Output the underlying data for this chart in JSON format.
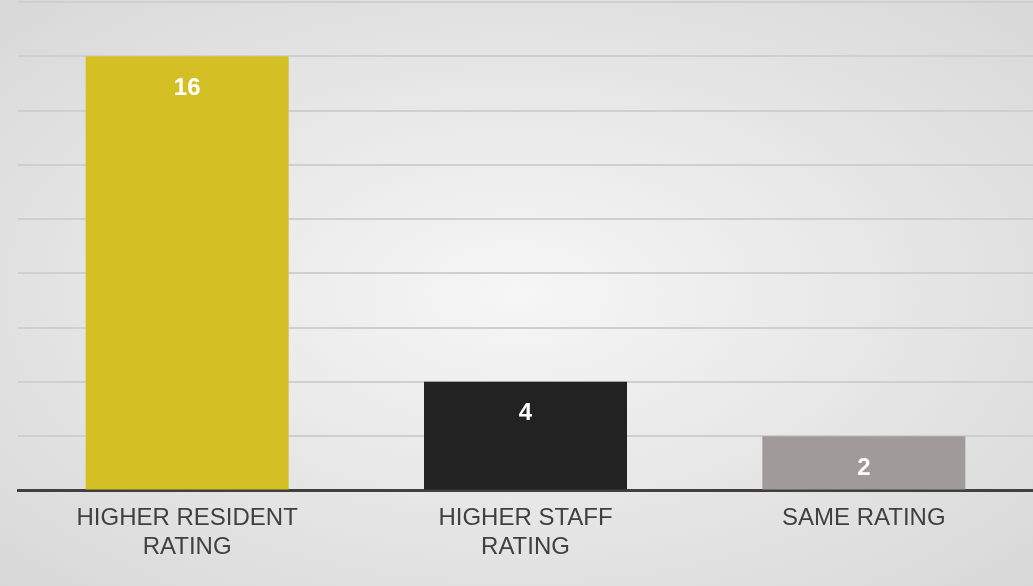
{
  "chart_data": {
    "type": "bar",
    "categories": [
      "HIGHER RESIDENT RATING",
      "HIGHER STAFF RATING",
      "SAME RATING"
    ],
    "values": [
      16,
      4,
      2
    ],
    "colors": [
      "#d4bf24",
      "#222222",
      "#a09a98"
    ],
    "ylim": [
      0,
      18
    ],
    "yticks": [
      {
        "value": 0,
        "label": null
      },
      {
        "value": 2,
        "label": null
      },
      {
        "value": 4,
        "label": null
      },
      {
        "value": 6,
        "label": null
      },
      {
        "value": 8,
        "label": null
      },
      {
        "value": 10,
        "label": null
      },
      {
        "value": 12,
        "label": null
      },
      {
        "value": 14,
        "label": null
      },
      {
        "value": 16,
        "label": null
      },
      {
        "value": 18,
        "label": null
      }
    ],
    "grid": "y",
    "tick_labels": "x",
    "data_labels": true
  }
}
